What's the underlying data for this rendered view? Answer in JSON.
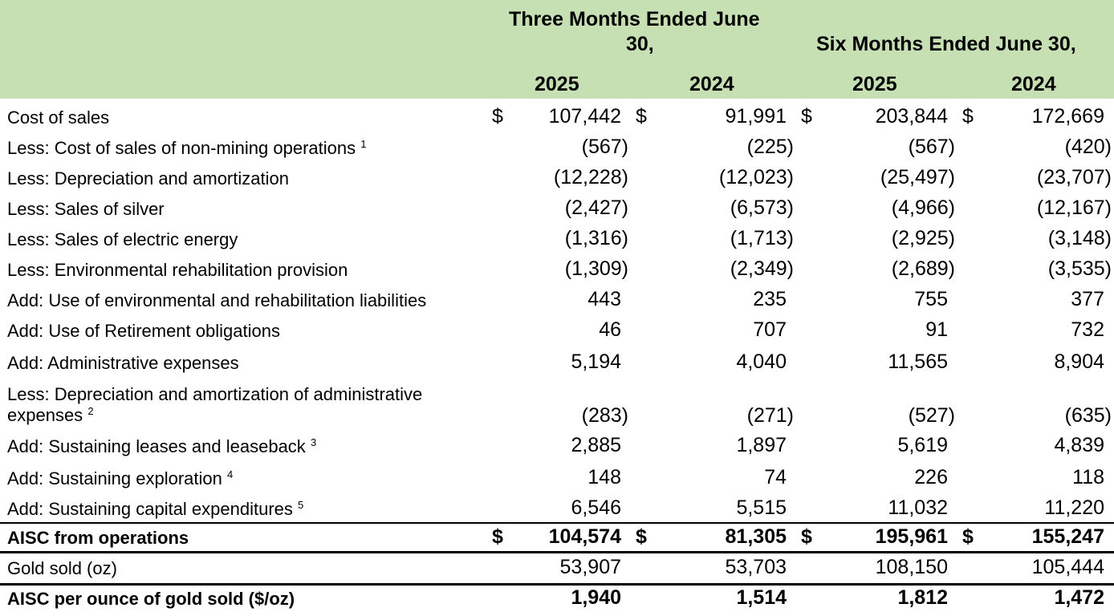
{
  "header": {
    "three_months_line1": "Three Months Ended June",
    "three_months_line2": "30,",
    "six_months": "Six Months Ended June 30,",
    "years": [
      "2025",
      "2024",
      "2025",
      "2024"
    ]
  },
  "currency_symbol": "$",
  "rows": [
    {
      "label": "Cost of sales",
      "sup": "",
      "values": [
        "107,442",
        "91,991",
        "203,844",
        "172,669"
      ],
      "currency": true,
      "bold": false
    },
    {
      "label": "Less: Cost of sales of non-mining operations",
      "sup": "1",
      "values": [
        "(567)",
        "(225)",
        "(567)",
        "(420)"
      ],
      "currency": false,
      "bold": false
    },
    {
      "label": "Less: Depreciation and amortization",
      "sup": "",
      "values": [
        "(12,228)",
        "(12,023)",
        "(25,497)",
        "(23,707)"
      ],
      "currency": false,
      "bold": false
    },
    {
      "label": "Less: Sales of silver",
      "sup": "",
      "values": [
        "(2,427)",
        "(6,573)",
        "(4,966)",
        "(12,167)"
      ],
      "currency": false,
      "bold": false
    },
    {
      "label": "Less: Sales of electric energy",
      "sup": "",
      "values": [
        "(1,316)",
        "(1,713)",
        "(2,925)",
        "(3,148)"
      ],
      "currency": false,
      "bold": false
    },
    {
      "label": "Less: Environmental rehabilitation provision",
      "sup": "",
      "values": [
        "(1,309)",
        "(2,349)",
        "(2,689)",
        "(3,535)"
      ],
      "currency": false,
      "bold": false
    },
    {
      "label": "Add: Use of environmental and rehabilitation liabilities",
      "sup": "",
      "values": [
        "443",
        "235",
        "755",
        "377"
      ],
      "currency": false,
      "bold": false
    },
    {
      "label": "Add: Use of Retirement obligations",
      "sup": "",
      "values": [
        "46",
        "707",
        "91",
        "732"
      ],
      "currency": false,
      "bold": false
    },
    {
      "label": "Add: Administrative expenses",
      "sup": "",
      "values": [
        "5,194",
        "4,040",
        "11,565",
        "8,904"
      ],
      "currency": false,
      "bold": false
    },
    {
      "label": "Less: Depreciation and amortization of administrative",
      "label2": "expenses",
      "sup": "2",
      "values": [
        "(283)",
        "(271)",
        "(527)",
        "(635)"
      ],
      "currency": false,
      "bold": false
    },
    {
      "label": "Add: Sustaining leases and leaseback",
      "sup": "3",
      "values": [
        "2,885",
        "1,897",
        "5,619",
        "4,839"
      ],
      "currency": false,
      "bold": false
    },
    {
      "label": "Add: Sustaining exploration",
      "sup": "4",
      "values": [
        "148",
        "74",
        "226",
        "118"
      ],
      "currency": false,
      "bold": false
    },
    {
      "label": "Add: Sustaining capital expenditures",
      "sup": "5",
      "values": [
        "6,546",
        "5,515",
        "11,032",
        "11,220"
      ],
      "currency": false,
      "bold": false
    },
    {
      "label": "AISC from operations",
      "sup": "",
      "values": [
        "104,574",
        "81,305",
        "195,961",
        "155,247"
      ],
      "currency": true,
      "bold": true
    },
    {
      "label": "Gold sold (oz)",
      "sup": "",
      "values": [
        "53,907",
        "53,703",
        "108,150",
        "105,444"
      ],
      "currency": false,
      "bold": false
    },
    {
      "label": "AISC per ounce of gold sold ($/oz)",
      "sup": "",
      "values": [
        "1,940",
        "1,514",
        "1,812",
        "1,472"
      ],
      "currency": false,
      "bold": true
    }
  ]
}
